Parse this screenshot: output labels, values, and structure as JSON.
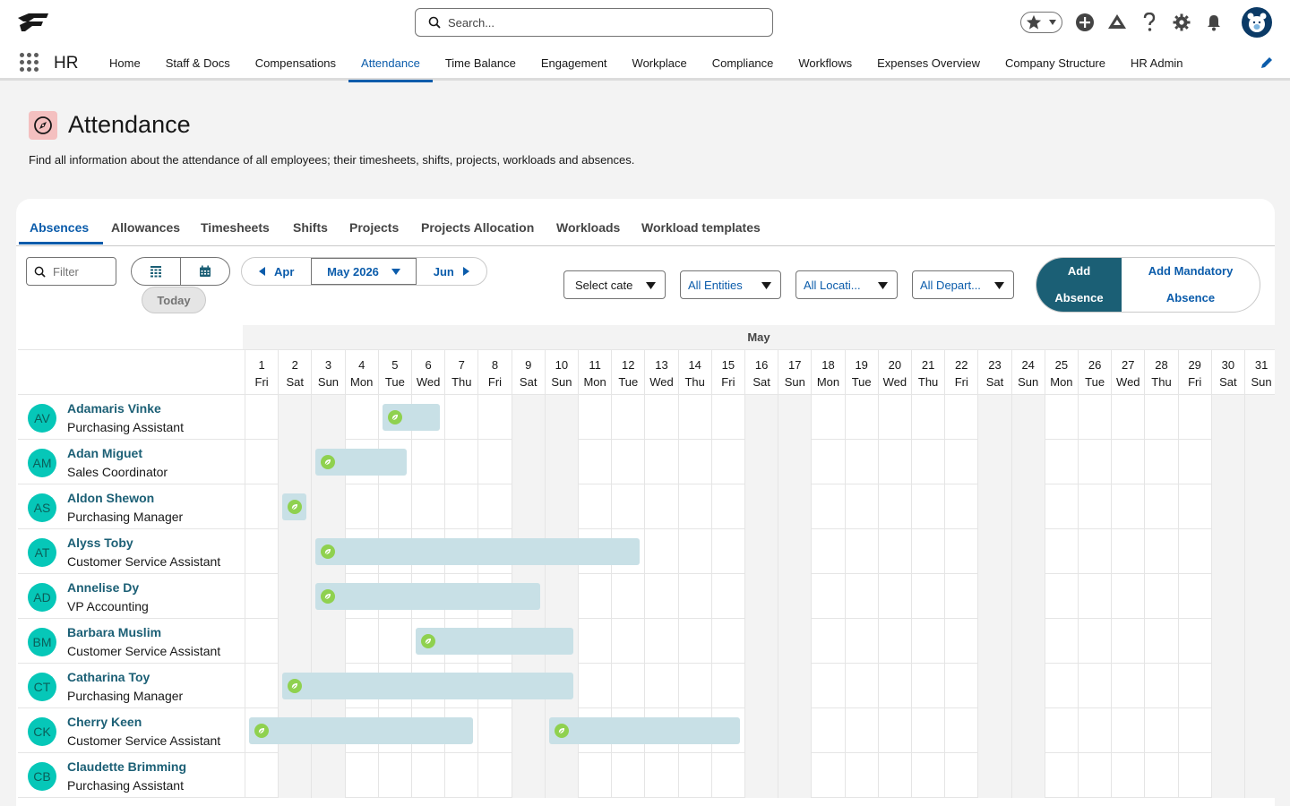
{
  "global": {
    "search_placeholder": "Search...",
    "icons": [
      "favorites-star-icon",
      "add-icon",
      "trailhead-icon",
      "help-icon",
      "setup-gear-icon",
      "notifications-bell-icon",
      "user-avatar-icon"
    ]
  },
  "app": {
    "name": "HR",
    "nav": [
      {
        "label": "Home",
        "active": false
      },
      {
        "label": "Staff & Docs",
        "active": false
      },
      {
        "label": "Compensations",
        "active": false
      },
      {
        "label": "Attendance",
        "active": true
      },
      {
        "label": "Time Balance",
        "active": false
      },
      {
        "label": "Engagement",
        "active": false
      },
      {
        "label": "Workplace",
        "active": false
      },
      {
        "label": "Compliance",
        "active": false
      },
      {
        "label": "Workflows",
        "active": false
      },
      {
        "label": "Expenses Overview",
        "active": false
      },
      {
        "label": "Company Structure",
        "active": false
      },
      {
        "label": "HR Admin",
        "active": false
      }
    ]
  },
  "page": {
    "title": "Attendance",
    "description": "Find all information about the attendance of all employees; their timesheets, shifts, projects, workloads and absences."
  },
  "tabs": [
    {
      "label": "Absences",
      "active": true
    },
    {
      "label": "Allowances",
      "active": false
    },
    {
      "label": "Timesheets",
      "active": false
    },
    {
      "label": "Shifts",
      "active": false
    },
    {
      "label": "Projects",
      "active": false
    },
    {
      "label": "Projects Allocation",
      "active": false
    },
    {
      "label": "Workloads",
      "active": false
    },
    {
      "label": "Workload templates",
      "active": false
    }
  ],
  "toolbar": {
    "filter_placeholder": "Filter",
    "today": "Today",
    "prev_month": "Apr",
    "current_month": "May 2026",
    "next_month": "Jun",
    "category_select": "Select cate",
    "entity_select": "All Entities",
    "location_select": "All Locati...",
    "department_select": "All Depart...",
    "add_absence": [
      "Add",
      "Absence"
    ],
    "add_mandatory_absence": [
      "Add Mandatory",
      "Absence"
    ]
  },
  "calendar": {
    "month": "May",
    "days": [
      {
        "n": "1",
        "w": "Fri"
      },
      {
        "n": "2",
        "w": "Sat"
      },
      {
        "n": "3",
        "w": "Sun"
      },
      {
        "n": "4",
        "w": "Mon"
      },
      {
        "n": "5",
        "w": "Tue"
      },
      {
        "n": "6",
        "w": "Wed"
      },
      {
        "n": "7",
        "w": "Thu"
      },
      {
        "n": "8",
        "w": "Fri"
      },
      {
        "n": "9",
        "w": "Sat"
      },
      {
        "n": "10",
        "w": "Sun"
      },
      {
        "n": "11",
        "w": "Mon"
      },
      {
        "n": "12",
        "w": "Tue"
      },
      {
        "n": "13",
        "w": "Wed"
      },
      {
        "n": "14",
        "w": "Thu"
      },
      {
        "n": "15",
        "w": "Fri"
      },
      {
        "n": "16",
        "w": "Sat"
      },
      {
        "n": "17",
        "w": "Sun"
      },
      {
        "n": "18",
        "w": "Mon"
      },
      {
        "n": "19",
        "w": "Tue"
      },
      {
        "n": "20",
        "w": "Wed"
      },
      {
        "n": "21",
        "w": "Thu"
      },
      {
        "n": "22",
        "w": "Fri"
      },
      {
        "n": "23",
        "w": "Sat"
      },
      {
        "n": "24",
        "w": "Sun"
      },
      {
        "n": "25",
        "w": "Mon"
      },
      {
        "n": "26",
        "w": "Tue"
      },
      {
        "n": "27",
        "w": "Wed"
      },
      {
        "n": "28",
        "w": "Thu"
      },
      {
        "n": "29",
        "w": "Fri"
      },
      {
        "n": "30",
        "w": "Sat"
      },
      {
        "n": "31",
        "w": "Sun"
      }
    ],
    "employees": [
      {
        "initials": "AV",
        "name": "Adamaris Vinke",
        "role": "Purchasing Assistant",
        "absences": [
          {
            "start": 5,
            "end": 6
          }
        ]
      },
      {
        "initials": "AM",
        "name": "Adan Miguet",
        "role": "Sales Coordinator",
        "absences": [
          {
            "start": 3,
            "end": 5
          }
        ]
      },
      {
        "initials": "AS",
        "name": "Aldon Shewon",
        "role": "Purchasing Manager",
        "absences": [
          {
            "start": 2,
            "end": 2
          }
        ]
      },
      {
        "initials": "AT",
        "name": "Alyss Toby",
        "role": "Customer Service Assistant",
        "absences": [
          {
            "start": 3,
            "end": 12
          }
        ]
      },
      {
        "initials": "AD",
        "name": "Annelise Dy",
        "role": "VP Accounting",
        "absences": [
          {
            "start": 3,
            "end": 9
          }
        ]
      },
      {
        "initials": "BM",
        "name": "Barbara Muslim",
        "role": "Customer Service Assistant",
        "absences": [
          {
            "start": 6,
            "end": 10
          }
        ]
      },
      {
        "initials": "CT",
        "name": "Catharina Toy",
        "role": "Purchasing Manager",
        "absences": [
          {
            "start": 2,
            "end": 10
          }
        ]
      },
      {
        "initials": "CK",
        "name": "Cherry Keen",
        "role": "Customer Service Assistant",
        "absences": [
          {
            "start": 1,
            "end": 7
          },
          {
            "start": 10,
            "end": 15
          }
        ]
      },
      {
        "initials": "CB",
        "name": "Claudette Brimming",
        "role": "Purchasing Assistant",
        "absences": []
      }
    ]
  }
}
